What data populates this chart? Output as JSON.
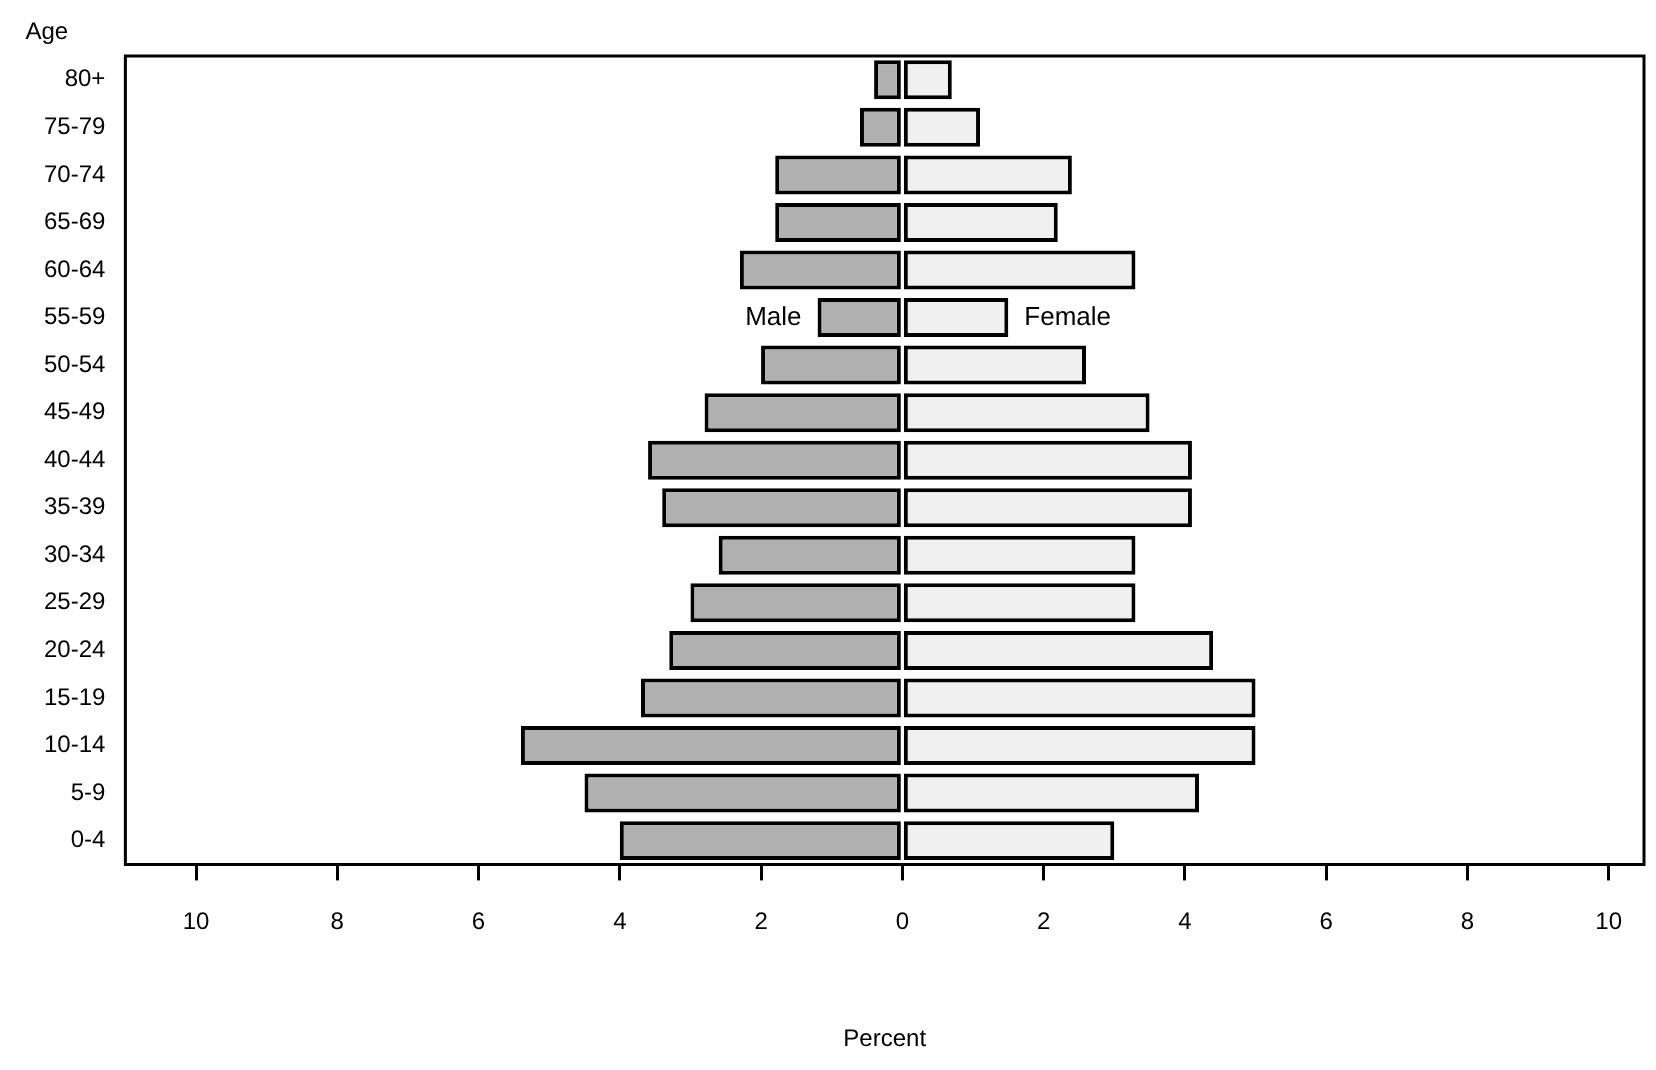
{
  "chart_data": {
    "type": "bar",
    "orientation": "horizontal",
    "stacked": true,
    "xlabel": "Percent",
    "ylabel": "Age",
    "categories": [
      "80+",
      "75-79",
      "70-74",
      "65-69",
      "60-64",
      "55-59",
      "50-54",
      "45-49",
      "40-44",
      "35-39",
      "30-34",
      "25-29",
      "20-24",
      "15-19",
      "10-14",
      "5-9",
      "0-4"
    ],
    "series": [
      {
        "name": "Male",
        "color": "#b0b0b0",
        "values": [
          -0.4,
          -0.6,
          -1.8,
          -1.8,
          -2.3,
          -1.2,
          -2.0,
          -2.8,
          -3.6,
          -3.4,
          -2.6,
          -3.0,
          -3.3,
          -3.7,
          -5.4,
          -4.5,
          -4.0
        ]
      },
      {
        "name": "Female",
        "color": "#f0f0f0",
        "values": [
          0.7,
          1.1,
          2.4,
          2.2,
          3.3,
          1.5,
          2.6,
          3.5,
          4.1,
          4.1,
          3.3,
          3.3,
          4.4,
          5.0,
          5.0,
          4.2,
          3.0
        ]
      }
    ],
    "xlim": [
      -11,
      10.5
    ],
    "xticks": [
      {
        "value": -10,
        "label": "10"
      },
      {
        "value": -8,
        "label": "8"
      },
      {
        "value": -6,
        "label": "6"
      },
      {
        "value": -4,
        "label": "4"
      },
      {
        "value": -2,
        "label": "2"
      },
      0,
      2,
      4,
      6,
      8,
      10
    ],
    "grid": false,
    "legend": false
  }
}
